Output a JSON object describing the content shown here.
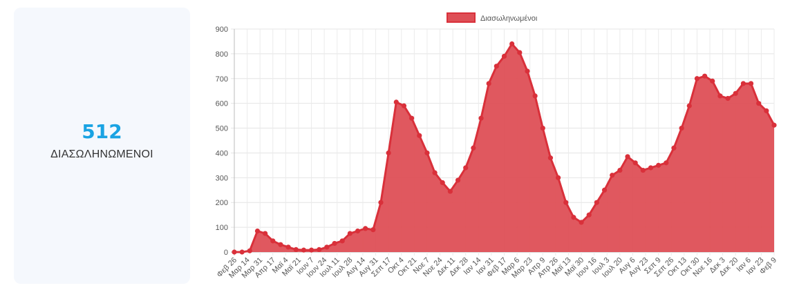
{
  "stat": {
    "value": "512",
    "label": "ΔΙΑΣΩΛΗΝΩΜΕΝΟΙ"
  },
  "colors": {
    "accent": "#1aa3e3",
    "series_line": "#d9303a",
    "series_fill": "#de4f56",
    "card_bg": "#f5f8fd"
  },
  "chart_data": {
    "type": "area",
    "title": "",
    "xlabel": "",
    "ylabel": "",
    "ylim": [
      0,
      900
    ],
    "yticks": [
      0,
      100,
      200,
      300,
      400,
      500,
      600,
      700,
      800,
      900
    ],
    "grid": true,
    "legend_position": "top-center",
    "xticks": [
      "Φεβ 26",
      "Μαρ 14",
      "Μαρ 31",
      "Απρ 17",
      "Μαϊ 4",
      "Μαϊ 21",
      "Ιουν 7",
      "Ιουν 24",
      "Ιουλ 11",
      "Ιουλ 28",
      "Αυγ 14",
      "Αυγ 31",
      "Σεπ 17",
      "Οκτ 4",
      "Οκτ 21",
      "Νοε 7",
      "Νοε 24",
      "Δεκ 11",
      "Δεκ 28",
      "Ιαν 14",
      "Ιαν 31",
      "Φεβ 17",
      "Μαρ 6",
      "Μαρ 23",
      "Απρ 9",
      "Απρ 26",
      "Μαϊ 13",
      "Μαϊ 30",
      "Ιουν 16",
      "Ιουλ 3",
      "Ιουλ 20",
      "Αυγ 6",
      "Αυγ 23",
      "Σεπ 9",
      "Σεπ 26",
      "Οκτ 13",
      "Οκτ 30",
      "Νοε 16",
      "Δεκ 3",
      "Δεκ 20",
      "Ιαν 6",
      "Ιαν 23",
      "Φεβ 9"
    ],
    "series": [
      {
        "name": "Διασωληνωμένοι",
        "values": [
          0,
          0,
          5,
          85,
          75,
          45,
          30,
          20,
          10,
          8,
          8,
          10,
          20,
          35,
          45,
          75,
          85,
          95,
          90,
          200,
          400,
          605,
          590,
          540,
          470,
          400,
          320,
          280,
          245,
          290,
          340,
          420,
          540,
          680,
          750,
          790,
          840,
          805,
          730,
          630,
          500,
          380,
          300,
          200,
          140,
          120,
          150,
          200,
          250,
          310,
          330,
          385,
          360,
          330,
          340,
          350,
          360,
          420,
          500,
          590,
          700,
          710,
          690,
          630,
          620,
          640,
          680,
          680,
          600,
          570,
          512
        ]
      }
    ]
  }
}
